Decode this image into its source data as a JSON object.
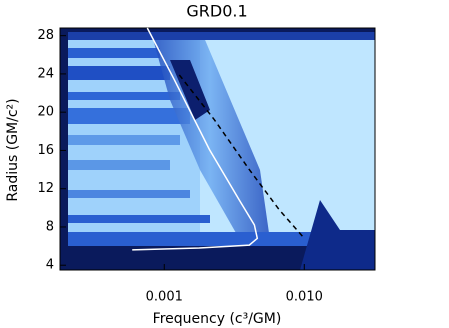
{
  "chart_data": {
    "type": "line",
    "title": "GRD0.1",
    "x_label": "Frequency (c³/GM)",
    "y_label": "Radius (GM/c²)",
    "x_log": true,
    "xlim": [
      0.00018,
      0.032
    ],
    "xticks": [
      0.001,
      {
        "value": 0.01,
        "label": "0.010"
      }
    ],
    "ylim": [
      3.5,
      28.8
    ],
    "yticks": [
      4,
      8,
      12,
      16,
      20,
      24,
      28
    ],
    "series": [
      {
        "color": "#ffffff",
        "dashed": false,
        "x": [
          0.000756,
          0.00118,
          0.0021,
          0.00344,
          0.0044,
          0.00462,
          0.00405,
          0.00178,
          0.00059
        ],
        "values": [
          28.8,
          23.4,
          16.1,
          10.8,
          8.2,
          6.8,
          6.1,
          5.8,
          5.6
        ]
      },
      {
        "color": "#000000",
        "dashed": true,
        "x": [
          0.00128,
          0.00228,
          0.00405,
          0.00662,
          0.01
        ],
        "values": [
          23.9,
          19.2,
          14.0,
          9.8,
          6.8
        ]
      }
    ]
  }
}
